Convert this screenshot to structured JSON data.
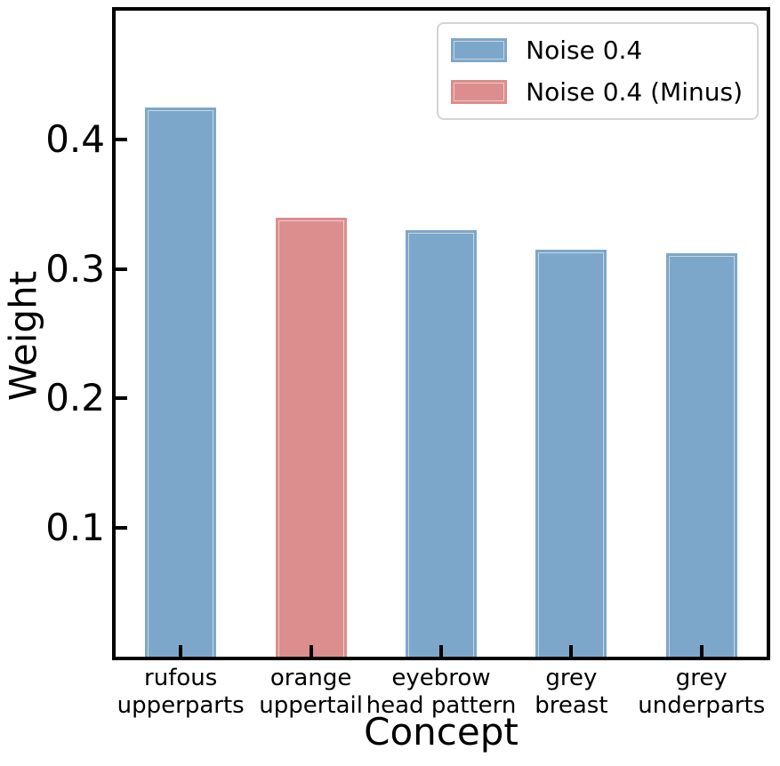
{
  "chart_data": {
    "type": "bar",
    "title": "",
    "xlabel": "Concept",
    "ylabel": "Weight",
    "ylim": [
      0,
      0.5
    ],
    "yticks": [
      0.1,
      0.2,
      0.3,
      0.4
    ],
    "ytick_decimals": 1,
    "grid": false,
    "legend_position": "upper right",
    "series": [
      {
        "name": "Noise 0.4",
        "color": "#7da7ca"
      },
      {
        "name": "Noise 0.4 (Minus)",
        "color": "#dc8d8d"
      }
    ],
    "bars": [
      {
        "category": "rufous\nupperparts",
        "value": 0.425,
        "series": "Noise 0.4"
      },
      {
        "category": "orange\nuppertail",
        "value": 0.34,
        "series": "Noise 0.4 (Minus)"
      },
      {
        "category": "eyebrow\nhead pattern",
        "value": 0.33,
        "series": "Noise 0.4"
      },
      {
        "category": "grey\nbreast",
        "value": 0.315,
        "series": "Noise 0.4"
      },
      {
        "category": "grey\nunderparts",
        "value": 0.312,
        "series": "Noise 0.4"
      }
    ]
  },
  "colors": {
    "axis": "#000000",
    "background": "#ffffff",
    "legend_border": "#d4d4d4"
  }
}
